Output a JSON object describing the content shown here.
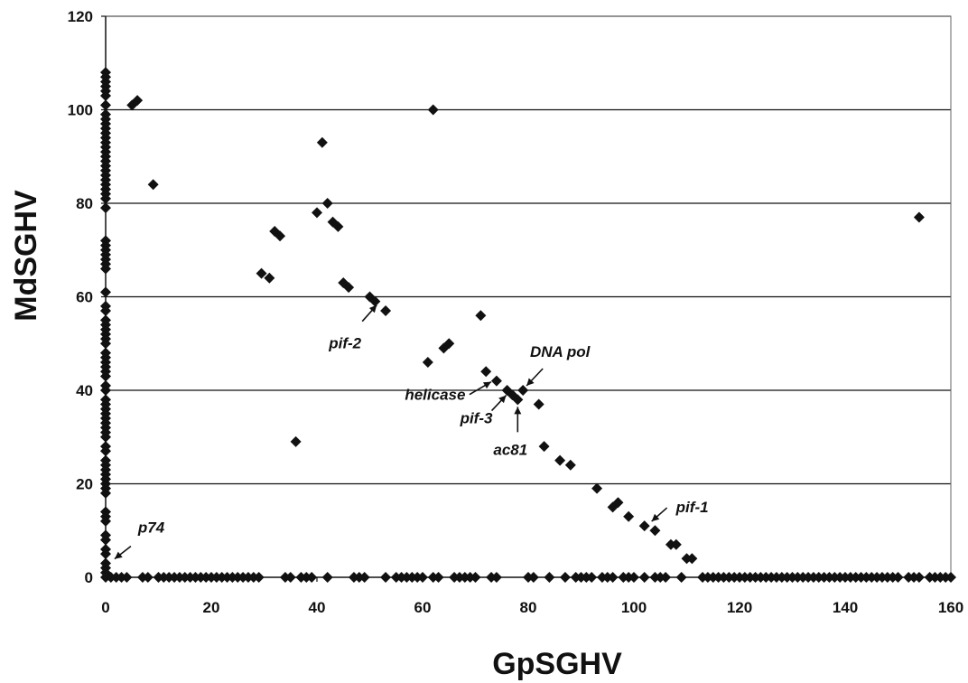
{
  "chart_data": {
    "type": "scatter",
    "title": "",
    "xlabel": "GpSGHV",
    "ylabel": "MdSGHV",
    "xlim": [
      0,
      160
    ],
    "ylim": [
      0,
      120
    ],
    "xticks": [
      0,
      20,
      40,
      60,
      80,
      100,
      120,
      140,
      160
    ],
    "yticks": [
      0,
      20,
      40,
      60,
      80,
      100,
      120
    ],
    "grid": "horizontal",
    "legend": "none",
    "marker": "diamond",
    "color": "#111111",
    "points": [
      [
        0,
        108
      ],
      [
        0,
        107
      ],
      [
        0,
        106
      ],
      [
        0,
        105
      ],
      [
        0,
        104
      ],
      [
        0,
        103
      ],
      [
        0,
        101
      ],
      [
        0,
        99
      ],
      [
        0,
        98
      ],
      [
        0,
        97
      ],
      [
        0,
        96
      ],
      [
        0,
        95
      ],
      [
        0,
        94
      ],
      [
        0,
        93
      ],
      [
        0,
        92
      ],
      [
        0,
        91
      ],
      [
        0,
        90
      ],
      [
        0,
        89
      ],
      [
        0,
        88
      ],
      [
        0,
        87
      ],
      [
        0,
        86
      ],
      [
        0,
        85
      ],
      [
        0,
        84
      ],
      [
        0,
        83
      ],
      [
        0,
        82
      ],
      [
        0,
        81
      ],
      [
        0,
        79
      ],
      [
        0,
        72
      ],
      [
        0,
        71
      ],
      [
        0,
        70
      ],
      [
        0,
        69
      ],
      [
        0,
        68
      ],
      [
        0,
        67
      ],
      [
        0,
        66
      ],
      [
        0,
        61
      ],
      [
        0,
        58
      ],
      [
        0,
        57
      ],
      [
        0,
        55
      ],
      [
        0,
        54
      ],
      [
        0,
        53
      ],
      [
        0,
        52
      ],
      [
        0,
        51
      ],
      [
        0,
        50
      ],
      [
        0,
        48
      ],
      [
        0,
        47
      ],
      [
        0,
        46
      ],
      [
        0,
        45
      ],
      [
        0,
        44
      ],
      [
        0,
        43
      ],
      [
        0,
        41
      ],
      [
        0,
        40
      ],
      [
        0,
        38
      ],
      [
        0,
        37
      ],
      [
        0,
        36
      ],
      [
        0,
        35
      ],
      [
        0,
        34
      ],
      [
        0,
        33
      ],
      [
        0,
        32
      ],
      [
        0,
        31
      ],
      [
        0,
        30
      ],
      [
        0,
        28
      ],
      [
        0,
        27
      ],
      [
        0,
        25
      ],
      [
        0,
        24
      ],
      [
        0,
        23
      ],
      [
        0,
        22
      ],
      [
        0,
        21
      ],
      [
        0,
        20
      ],
      [
        0,
        19
      ],
      [
        0,
        18
      ],
      [
        0,
        14
      ],
      [
        0,
        13
      ],
      [
        0,
        12
      ],
      [
        0,
        9
      ],
      [
        0,
        8
      ],
      [
        0,
        6
      ],
      [
        0,
        5
      ],
      [
        0,
        3
      ],
      [
        0,
        2
      ],
      [
        0,
        1
      ],
      [
        0,
        0
      ],
      [
        1,
        0
      ],
      [
        2,
        0
      ],
      [
        3,
        0
      ],
      [
        4,
        0
      ],
      [
        7,
        0
      ],
      [
        8,
        0
      ],
      [
        10,
        0
      ],
      [
        11,
        0
      ],
      [
        12,
        0
      ],
      [
        13,
        0
      ],
      [
        14,
        0
      ],
      [
        15,
        0
      ],
      [
        16,
        0
      ],
      [
        17,
        0
      ],
      [
        18,
        0
      ],
      [
        19,
        0
      ],
      [
        20,
        0
      ],
      [
        21,
        0
      ],
      [
        22,
        0
      ],
      [
        23,
        0
      ],
      [
        24,
        0
      ],
      [
        25,
        0
      ],
      [
        26,
        0
      ],
      [
        27,
        0
      ],
      [
        28,
        0
      ],
      [
        29,
        0
      ],
      [
        34,
        0
      ],
      [
        35,
        0
      ],
      [
        37,
        0
      ],
      [
        38,
        0
      ],
      [
        39,
        0
      ],
      [
        42,
        0
      ],
      [
        47,
        0
      ],
      [
        48,
        0
      ],
      [
        49,
        0
      ],
      [
        53,
        0
      ],
      [
        55,
        0
      ],
      [
        56,
        0
      ],
      [
        57,
        0
      ],
      [
        58,
        0
      ],
      [
        59,
        0
      ],
      [
        60,
        0
      ],
      [
        62,
        0
      ],
      [
        63,
        0
      ],
      [
        66,
        0
      ],
      [
        67,
        0
      ],
      [
        68,
        0
      ],
      [
        69,
        0
      ],
      [
        70,
        0
      ],
      [
        73,
        0
      ],
      [
        74,
        0
      ],
      [
        80,
        0
      ],
      [
        81,
        0
      ],
      [
        84,
        0
      ],
      [
        87,
        0
      ],
      [
        89,
        0
      ],
      [
        90,
        0
      ],
      [
        91,
        0
      ],
      [
        92,
        0
      ],
      [
        94,
        0
      ],
      [
        95,
        0
      ],
      [
        96,
        0
      ],
      [
        98,
        0
      ],
      [
        99,
        0
      ],
      [
        100,
        0
      ],
      [
        102,
        0
      ],
      [
        104,
        0
      ],
      [
        105,
        0
      ],
      [
        106,
        0
      ],
      [
        109,
        0
      ],
      [
        113,
        0
      ],
      [
        114,
        0
      ],
      [
        115,
        0
      ],
      [
        116,
        0
      ],
      [
        117,
        0
      ],
      [
        118,
        0
      ],
      [
        119,
        0
      ],
      [
        120,
        0
      ],
      [
        121,
        0
      ],
      [
        122,
        0
      ],
      [
        123,
        0
      ],
      [
        124,
        0
      ],
      [
        125,
        0
      ],
      [
        126,
        0
      ],
      [
        127,
        0
      ],
      [
        128,
        0
      ],
      [
        129,
        0
      ],
      [
        130,
        0
      ],
      [
        131,
        0
      ],
      [
        132,
        0
      ],
      [
        133,
        0
      ],
      [
        134,
        0
      ],
      [
        135,
        0
      ],
      [
        136,
        0
      ],
      [
        137,
        0
      ],
      [
        138,
        0
      ],
      [
        139,
        0
      ],
      [
        140,
        0
      ],
      [
        141,
        0
      ],
      [
        142,
        0
      ],
      [
        143,
        0
      ],
      [
        144,
        0
      ],
      [
        145,
        0
      ],
      [
        146,
        0
      ],
      [
        147,
        0
      ],
      [
        148,
        0
      ],
      [
        149,
        0
      ],
      [
        150,
        0
      ],
      [
        152,
        0
      ],
      [
        153,
        0
      ],
      [
        154,
        0
      ],
      [
        156,
        0
      ],
      [
        157,
        0
      ],
      [
        158,
        0
      ],
      [
        159,
        0
      ],
      [
        160,
        0
      ],
      [
        5,
        101
      ],
      [
        6,
        102
      ],
      [
        9,
        84
      ],
      [
        29.5,
        65
      ],
      [
        31,
        64
      ],
      [
        32,
        74
      ],
      [
        33,
        73
      ],
      [
        36,
        29
      ],
      [
        40,
        78
      ],
      [
        41,
        93
      ],
      [
        42,
        80
      ],
      [
        43,
        76
      ],
      [
        44,
        75
      ],
      [
        45,
        63
      ],
      [
        46,
        62
      ],
      [
        50,
        60
      ],
      [
        51,
        59
      ],
      [
        53,
        57
      ],
      [
        61,
        46
      ],
      [
        62,
        100
      ],
      [
        64,
        49
      ],
      [
        65,
        50
      ],
      [
        71,
        56
      ],
      [
        72,
        44
      ],
      [
        74,
        42
      ],
      [
        76,
        40
      ],
      [
        77,
        39
      ],
      [
        78,
        38
      ],
      [
        79,
        40
      ],
      [
        82,
        37
      ],
      [
        83,
        28
      ],
      [
        86,
        25
      ],
      [
        88,
        24
      ],
      [
        93,
        19
      ],
      [
        96,
        15
      ],
      [
        97,
        16
      ],
      [
        99,
        13
      ],
      [
        102,
        11
      ],
      [
        104,
        10
      ],
      [
        107,
        7
      ],
      [
        108,
        7
      ],
      [
        110,
        4
      ],
      [
        111,
        4
      ],
      [
        154,
        77
      ]
    ],
    "annotations": [
      {
        "label": "p74",
        "x": 0.5,
        "y": 2
      },
      {
        "label": "pif-2",
        "x": 52,
        "y": 59
      },
      {
        "label": "helicase",
        "x": 74,
        "y": 42
      },
      {
        "label": "DNA pol",
        "x": 79,
        "y": 40
      },
      {
        "label": "pif-3",
        "x": 76.5,
        "y": 39.5
      },
      {
        "label": "ac81",
        "x": 78,
        "y": 38
      },
      {
        "label": "pif-1",
        "x": 102.5,
        "y": 11
      }
    ]
  }
}
